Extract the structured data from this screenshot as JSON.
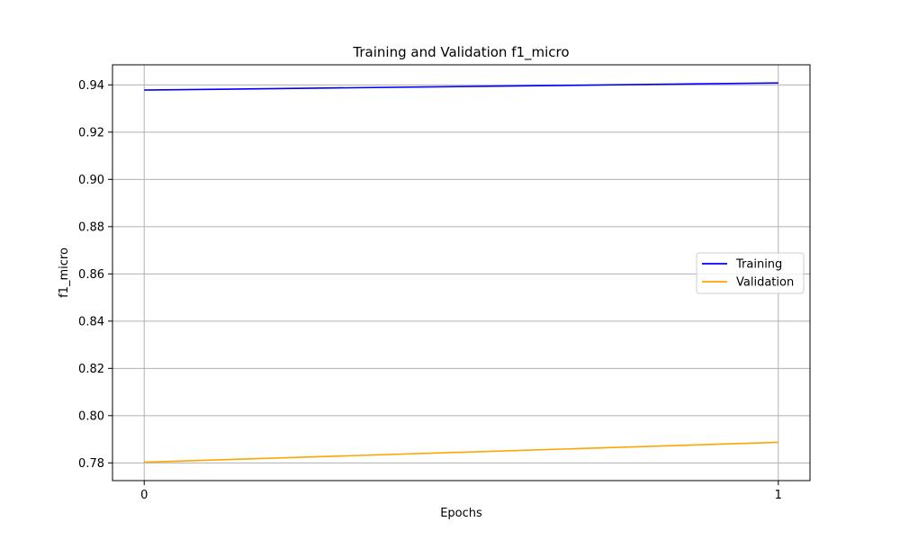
{
  "chart_data": {
    "type": "line",
    "title": "Training and Validation f1_micro",
    "xlabel": "Epochs",
    "ylabel": "f1_micro",
    "x": [
      0,
      1
    ],
    "x_ticks": [
      0,
      1
    ],
    "y_ticks": [
      0.78,
      0.8,
      0.82,
      0.84,
      0.86,
      0.88,
      0.9,
      0.92,
      0.94
    ],
    "xlim": [
      -0.05,
      1.05
    ],
    "ylim": [
      0.7725,
      0.9485
    ],
    "grid": true,
    "legend_position": "center-right",
    "series": [
      {
        "name": "Training",
        "values": [
          0.9378,
          0.9408
        ],
        "color": "#0000ff"
      },
      {
        "name": "Validation",
        "values": [
          0.7803,
          0.7887
        ],
        "color": "#ffa500"
      }
    ]
  }
}
